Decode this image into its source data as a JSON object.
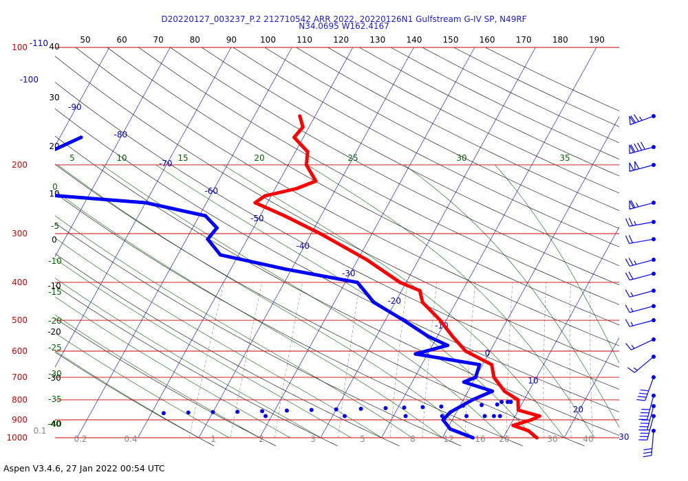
{
  "header": {
    "line1": "D20220127_003237_P.2 212710542 ARR 2022, 20220126N1 Gulfstream G-IV SP, N49RF",
    "line2": "N34.0695 W162.4167"
  },
  "footer": {
    "text": "Aspen V3.4.6, 27 Jan 2022  00:54 UTC"
  },
  "chart_data": {
    "type": "line",
    "title": "D20220127_003237_P.2 212710542 ARR 2022, 20220126N1 Gulfstream G-IV SP, N49RF",
    "subtitle": "N34.0695 W162.4167",
    "plot_kind": "Skew-T log-P thermodynamic diagram",
    "pressure_levels": [
      {
        "p": 100,
        "label": "100"
      },
      {
        "p": 200,
        "label": "200"
      },
      {
        "p": 300,
        "label": "300"
      },
      {
        "p": 400,
        "label": "400"
      },
      {
        "p": 500,
        "label": "500"
      },
      {
        "p": 600,
        "label": "600"
      },
      {
        "p": 700,
        "label": "700"
      },
      {
        "p": 800,
        "label": "800"
      },
      {
        "p": 900,
        "label": "900"
      },
      {
        "p": 1000,
        "label": "1000"
      }
    ],
    "top_left_label": "-110",
    "top_scale": [
      "50",
      "60",
      "70",
      "80",
      "90",
      "100",
      "110",
      "120",
      "130",
      "140",
      "150",
      "160",
      "170",
      "180",
      "190"
    ],
    "left_scale": [
      {
        "label": "40",
        "y": 68
      },
      {
        "label": "30",
        "y": 142
      },
      {
        "label": "20",
        "y": 213
      },
      {
        "label": "10",
        "y": 282
      },
      {
        "label": "0",
        "y": 349
      },
      {
        "label": "-10",
        "y": 416
      },
      {
        "label": "-20",
        "y": 483
      },
      {
        "label": "-30",
        "y": 550
      },
      {
        "label": "-40",
        "y": 617
      }
    ],
    "isotherm_labels": [
      "-100",
      "-90",
      "-80",
      "-70",
      "-60",
      "-50",
      "-40",
      "-30",
      "-20",
      "-10",
      "0",
      "10",
      "20",
      "30"
    ],
    "mixing_ratio_labels": [
      "0.1",
      "0.2",
      "0.4",
      "1",
      "2",
      "3",
      "5",
      "8",
      "12",
      "16",
      "20",
      "30",
      "40"
    ],
    "dry_adiabat_labels": [
      "0",
      "-5",
      "-10",
      "-15",
      "-20",
      "-25",
      "-30",
      "-35",
      "-40"
    ],
    "moist_adiabat_labels": [
      "5",
      "10",
      "15",
      "20",
      "25",
      "30",
      "35"
    ],
    "temperature_profile": {
      "name": "Temperature",
      "color": "#ff0000",
      "points": [
        {
          "p": 1000,
          "t": 15.5
        },
        {
          "p": 960,
          "t": 13.5
        },
        {
          "p": 930,
          "t": 10.5
        },
        {
          "p": 900,
          "t": 13.0
        },
        {
          "p": 880,
          "t": 14.0
        },
        {
          "p": 850,
          "t": 10.0
        },
        {
          "p": 800,
          "t": 9.0
        },
        {
          "p": 760,
          "t": 6.0
        },
        {
          "p": 700,
          "t": 3.0
        },
        {
          "p": 650,
          "t": 1.5
        },
        {
          "p": 600,
          "t": -4.0
        },
        {
          "p": 550,
          "t": -7.5
        },
        {
          "p": 500,
          "t": -11.0
        },
        {
          "p": 450,
          "t": -15.5
        },
        {
          "p": 420,
          "t": -17.0
        },
        {
          "p": 400,
          "t": -21.0
        },
        {
          "p": 350,
          "t": -28.5
        },
        {
          "p": 300,
          "t": -38.5
        },
        {
          "p": 270,
          "t": -46.0
        },
        {
          "p": 250,
          "t": -52.0
        },
        {
          "p": 240,
          "t": -51.0
        },
        {
          "p": 230,
          "t": -46.5
        },
        {
          "p": 220,
          "t": -44.0
        },
        {
          "p": 200,
          "t": -47.0
        },
        {
          "p": 185,
          "t": -48.0
        },
        {
          "p": 170,
          "t": -51.5
        },
        {
          "p": 160,
          "t": -51.0
        },
        {
          "p": 150,
          "t": -52.5
        }
      ]
    },
    "dewpoint_profile": {
      "name": "Dewpoint",
      "color": "#0000ff",
      "points": [
        {
          "p": 1000,
          "t": 5.0
        },
        {
          "p": 950,
          "t": 0.5
        },
        {
          "p": 900,
          "t": -1.5
        },
        {
          "p": 860,
          "t": -1.0
        },
        {
          "p": 800,
          "t": 1.5
        },
        {
          "p": 760,
          "t": 4.0
        },
        {
          "p": 720,
          "t": -1.5
        },
        {
          "p": 700,
          "t": 0.0
        },
        {
          "p": 650,
          "t": -0.5
        },
        {
          "p": 610,
          "t": -12.0
        },
        {
          "p": 580,
          "t": -7.5
        },
        {
          "p": 550,
          "t": -11.5
        },
        {
          "p": 500,
          "t": -17.0
        },
        {
          "p": 450,
          "t": -23.5
        },
        {
          "p": 400,
          "t": -28.0
        },
        {
          "p": 370,
          "t": -41.0
        },
        {
          "p": 340,
          "t": -53.0
        },
        {
          "p": 310,
          "t": -56.5
        },
        {
          "p": 290,
          "t": -56.0
        },
        {
          "p": 270,
          "t": -59.0
        },
        {
          "p": 250,
          "t": -70.0
        },
        {
          "p": 240,
          "t": -85.0
        },
        {
          "p": 230,
          "t": -95.0
        },
        {
          "p": 210,
          "t": -93.0
        },
        {
          "p": 190,
          "t": -91.5
        },
        {
          "p": 170,
          "t": -86.5
        }
      ],
      "scatter_points": [
        {
          "p": 865,
          "t": -48.0
        },
        {
          "p": 862,
          "t": -44.0
        },
        {
          "p": 860,
          "t": -40.0
        },
        {
          "p": 858,
          "t": -36.0
        },
        {
          "p": 855,
          "t": -32.0
        },
        {
          "p": 852,
          "t": -28.0
        },
        {
          "p": 849,
          "t": -24.0
        },
        {
          "p": 846,
          "t": -20.0
        },
        {
          "p": 843,
          "t": -16.0
        },
        {
          "p": 840,
          "t": -12.0
        },
        {
          "p": 837,
          "t": -9.0
        },
        {
          "p": 835,
          "t": -6.0
        },
        {
          "p": 832,
          "t": -3.0
        },
        {
          "p": 828,
          "t": 0.5
        },
        {
          "p": 825,
          "t": 3.5
        },
        {
          "p": 822,
          "t": 6.0
        },
        {
          "p": 880,
          "t": -31.0
        },
        {
          "p": 880,
          "t": -18.0
        },
        {
          "p": 880,
          "t": -8.0
        },
        {
          "p": 880,
          "t": -2.0
        },
        {
          "p": 880,
          "t": 2.0
        },
        {
          "p": 880,
          "t": 5.0
        },
        {
          "p": 880,
          "t": 6.5
        },
        {
          "p": 880,
          "t": 7.5
        },
        {
          "p": 810,
          "t": 6.5
        },
        {
          "p": 810,
          "t": 7.5
        },
        {
          "p": 810,
          "t": 8.0
        }
      ]
    },
    "wind_barbs": [
      {
        "p": 150,
        "dir": 250,
        "speed": 75
      },
      {
        "p": 180,
        "dir": 255,
        "speed": 90
      },
      {
        "p": 200,
        "dir": 255,
        "speed": 100
      },
      {
        "p": 250,
        "dir": 255,
        "speed": 65
      },
      {
        "p": 280,
        "dir": 260,
        "speed": 25
      },
      {
        "p": 310,
        "dir": 260,
        "speed": 20
      },
      {
        "p": 350,
        "dir": 255,
        "speed": 25
      },
      {
        "p": 380,
        "dir": 255,
        "speed": 20
      },
      {
        "p": 420,
        "dir": 255,
        "speed": 15
      },
      {
        "p": 460,
        "dir": 255,
        "speed": 15
      },
      {
        "p": 500,
        "dir": 255,
        "speed": 15
      },
      {
        "p": 560,
        "dir": 245,
        "speed": 15
      },
      {
        "p": 620,
        "dir": 230,
        "speed": 15
      },
      {
        "p": 700,
        "dir": 200,
        "speed": 40
      },
      {
        "p": 780,
        "dir": 195,
        "speed": 40
      },
      {
        "p": 830,
        "dir": 195,
        "speed": 40
      },
      {
        "p": 880,
        "dir": 195,
        "speed": 40
      },
      {
        "p": 960,
        "dir": 185,
        "speed": 30
      }
    ],
    "colors": {
      "isobar": "#cc0000",
      "isotherm": "#0000cc",
      "dry_adiabat": "#000000",
      "moist_adiabat": "#006600",
      "mixing_ratio": "#888888",
      "temperature": "#ff0000",
      "dewpoint": "#0000ff",
      "title": "#1a1ae6",
      "wind_barb": "#0000ff"
    }
  }
}
